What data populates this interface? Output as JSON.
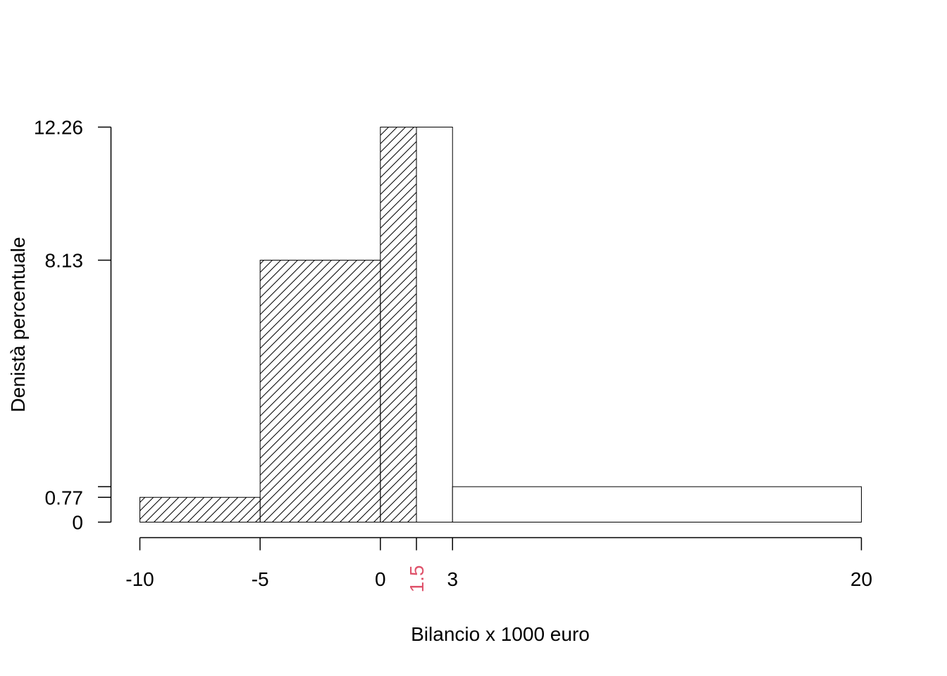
{
  "chart_data": {
    "type": "bar",
    "title": "",
    "xlabel": "Bilancio x 1000 euro",
    "ylabel": "Denistà percentuale",
    "xlim": [
      -10,
      20
    ],
    "ylim": [
      0,
      12.26
    ],
    "grid": false,
    "bins": [
      {
        "from": -10,
        "to": -5,
        "density": 0.77,
        "hatched": true
      },
      {
        "from": -5,
        "to": 0,
        "density": 8.13,
        "hatched": true
      },
      {
        "from": 0,
        "to": 1.5,
        "density": 12.26,
        "hatched": true
      },
      {
        "from": 1.5,
        "to": 3,
        "density": 12.26,
        "hatched": false
      },
      {
        "from": 3,
        "to": 20,
        "density": 1.1,
        "hatched": false
      }
    ],
    "x_ticks": [
      {
        "value": -10,
        "label": "-10"
      },
      {
        "value": -5,
        "label": "-5"
      },
      {
        "value": 0,
        "label": "0"
      },
      {
        "value": 1.5,
        "label": "1.5",
        "highlight": true
      },
      {
        "value": 3,
        "label": "3"
      },
      {
        "value": 20,
        "label": "20"
      }
    ],
    "y_ticks": [
      {
        "value": 0,
        "label": "0"
      },
      {
        "value": 0.77,
        "label": "0.77"
      },
      {
        "value": 1.1,
        "label": ""
      },
      {
        "value": 8.13,
        "label": "8.13"
      },
      {
        "value": 12.26,
        "label": "12.26"
      }
    ],
    "colors": {
      "highlight_tick": "#DF536B",
      "bar_fill": "#ffffff",
      "stroke": "#000000"
    }
  }
}
